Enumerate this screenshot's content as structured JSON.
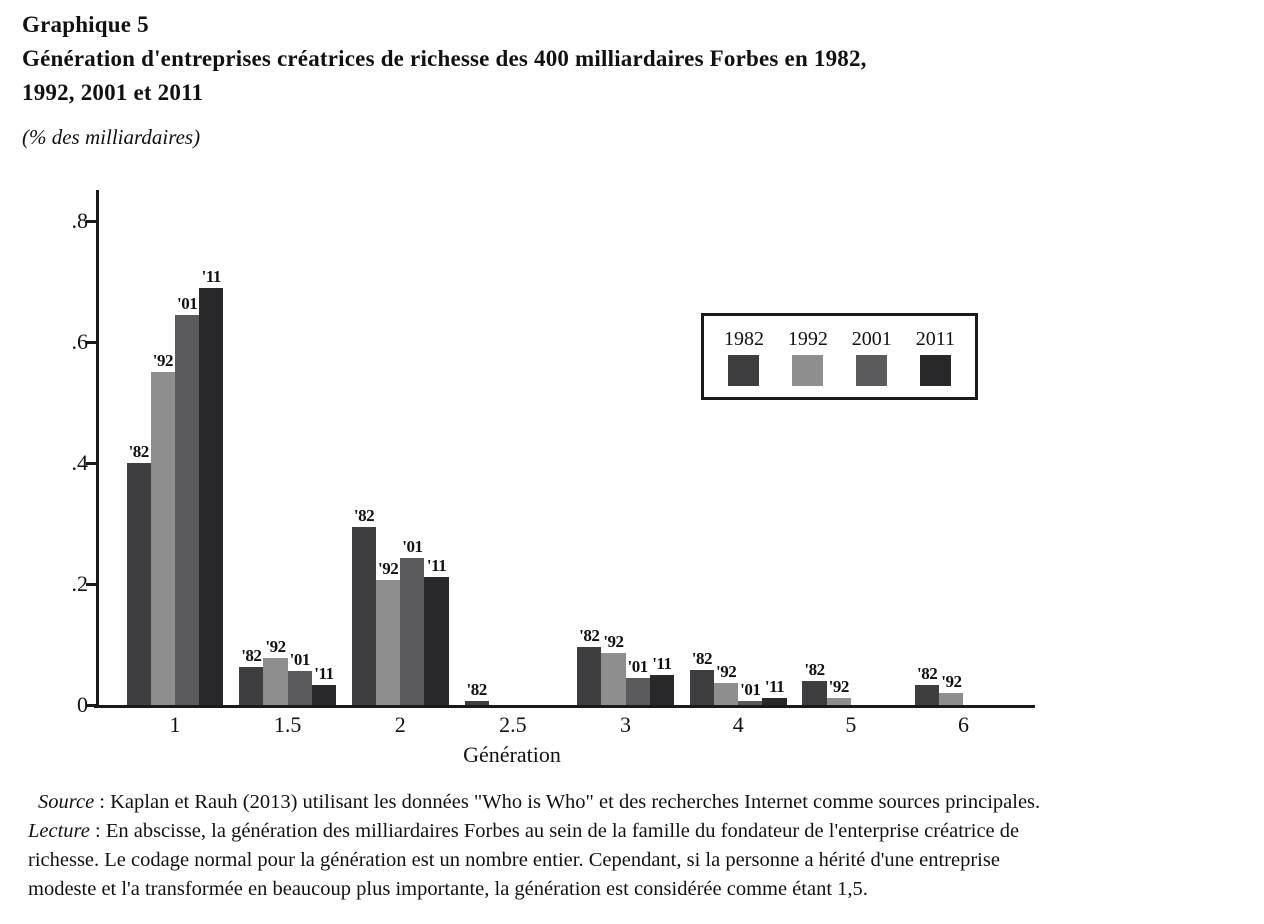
{
  "header": {
    "kicker": "Graphique 5",
    "title_line1": "Génération d'entreprises créatrices de richesse des 400 milliardaires Forbes en 1982,",
    "title_line2": "1992, 2001 et 2011",
    "unit_note": "(% des milliardaires)"
  },
  "chart_data": {
    "type": "bar",
    "title": "Génération d'entreprises créatrices de richesse des 400 milliardaires Forbes en 1982, 1992, 2001 et 2011",
    "ylabel": "% des milliardaires",
    "xlabel": "Génération",
    "categories": [
      "1",
      "1.5",
      "2",
      "2.5",
      "3",
      "4",
      "5",
      "6"
    ],
    "ylim": [
      0,
      0.8
    ],
    "yticks": [
      0,
      0.2,
      0.4,
      0.6,
      0.8
    ],
    "ytick_labels": [
      "0",
      ".2",
      ".4",
      ".6",
      ".8"
    ],
    "grid": false,
    "legend_position": "upper right",
    "series": [
      {
        "name": "1982",
        "bar_label": "'82",
        "color": "#3e3e40",
        "values": [
          0.4,
          0.063,
          0.295,
          0.006,
          0.096,
          0.058,
          0.039,
          0.033
        ]
      },
      {
        "name": "1992",
        "bar_label": "'92",
        "color": "#8e8e8e",
        "values": [
          0.55,
          0.078,
          0.207,
          null,
          0.086,
          0.036,
          0.012,
          0.02
        ]
      },
      {
        "name": "2001",
        "bar_label": "'01",
        "color": "#5b5b5d",
        "values": [
          0.645,
          0.056,
          0.243,
          null,
          0.044,
          0.007,
          null,
          null
        ]
      },
      {
        "name": "2011",
        "bar_label": "'11",
        "color": "#28282a",
        "values": [
          0.69,
          0.033,
          0.212,
          null,
          0.049,
          0.012,
          null,
          null
        ]
      }
    ]
  },
  "footer": {
    "source_label": "Source",
    "source_sep": " : ",
    "source_text": "Kaplan et Rauh (2013) utilisant les données \"Who is Who\" et des recherches Internet comme sources principales.",
    "lecture_label": "Lecture",
    "lecture_sep": " : ",
    "lecture_line1": "En abscisse, la génération des milliardaires Forbes au sein de la famille du fondateur de l'enterprise créatrice de",
    "lecture_line2": "richesse. Le codage normal pour la génération est un nombre entier. Cependant, si la personne a hérité d'une entreprise",
    "lecture_line3": "modeste et l'a transformée en beaucoup plus importante, la génération est considérée comme étant 1,5."
  }
}
